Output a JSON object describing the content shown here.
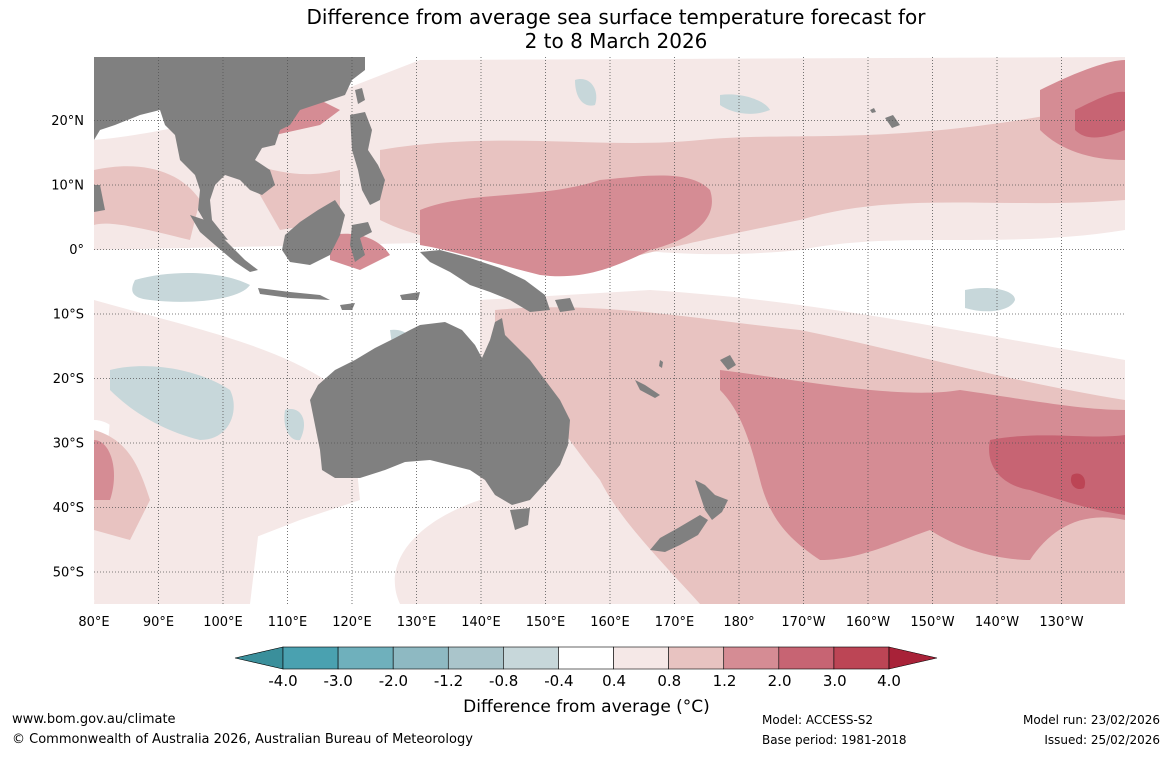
{
  "title": {
    "line1": "Difference from average sea surface temperature forecast for",
    "line2": "2 to 8 March 2026"
  },
  "map": {
    "longitude_labels": [
      "80°E",
      "90°E",
      "100°E",
      "110°E",
      "120°E",
      "130°E",
      "140°E",
      "150°E",
      "160°E",
      "170°E",
      "180°",
      "170°W",
      "160°W",
      "150°W",
      "140°W",
      "130°W"
    ],
    "latitude_labels": [
      "20°N",
      "10°N",
      "0°",
      "10°S",
      "20°S",
      "30°S",
      "40°S",
      "50°S"
    ],
    "land_color": "#808080"
  },
  "colorbar": {
    "ticks": [
      "-4.0",
      "-3.0",
      "-2.0",
      "-1.2",
      "-0.8",
      "-0.4",
      "0.4",
      "0.8",
      "1.2",
      "2.0",
      "3.0",
      "4.0"
    ],
    "colors": [
      "#3a8f9b",
      "#4aa1b0",
      "#6fb0bc",
      "#8eb9c2",
      "#aac5cb",
      "#c7d7da",
      "#ffffff",
      "#f5e8e7",
      "#e8c3c1",
      "#d58c94",
      "#c76473",
      "#bc4555",
      "#a82238"
    ],
    "title": "Difference from average (°C)"
  },
  "footer": {
    "website": "www.bom.gov.au/climate",
    "copyright": "© Commonwealth of Australia 2026, Australian Bureau of Meteorology",
    "model": "Model: ACCESS-S2",
    "base_period": "Base period: 1981-2018",
    "model_run": "Model run: 23/02/2026",
    "issued": "Issued: 25/02/2026"
  }
}
